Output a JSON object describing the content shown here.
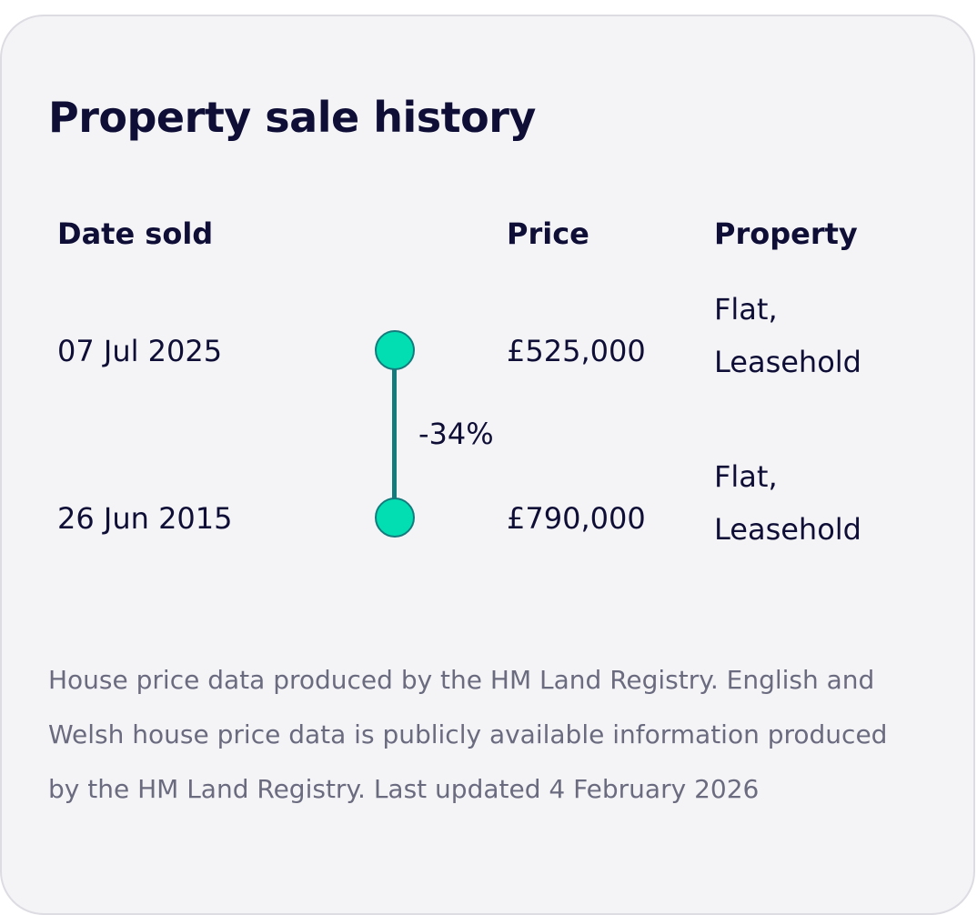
{
  "card": {
    "title": "Property sale history",
    "columns": {
      "date": "Date sold",
      "price": "Price",
      "property": "Property"
    },
    "rows": [
      {
        "date": "07 Jul 2025",
        "price": "£525,000",
        "property_line1": "Flat,",
        "property_line2": "Leasehold"
      },
      {
        "date": "26 Jun 2015",
        "price": "£790,000",
        "property_line1": "Flat,",
        "property_line2": "Leasehold"
      }
    ],
    "price_change": "-34%",
    "footnote": "House price data produced by the HM Land Registry. English and Welsh house price data is publicly available information produced by the HM Land Registry. Last updated 4 February 2026"
  },
  "colors": {
    "heading_text": "#0e0e36",
    "card_background": "#f4f4f7",
    "timeline_line": "#137b7c",
    "timeline_dot": "#03ddb2",
    "footnote_text": "#6b6b80"
  }
}
